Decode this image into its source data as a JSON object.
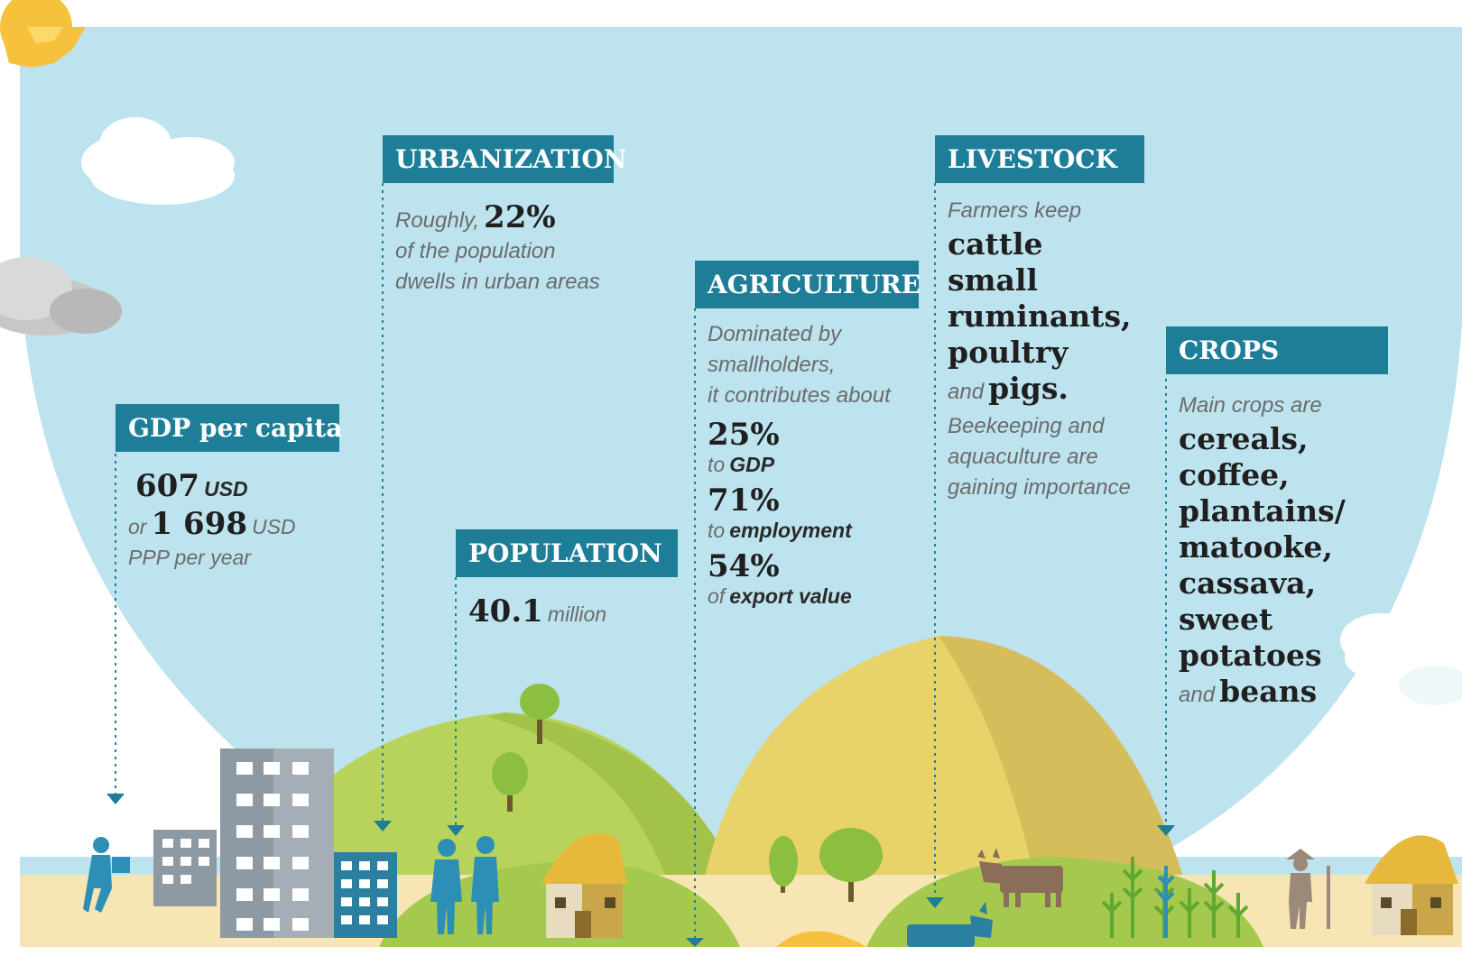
{
  "gdp": {
    "title": "GDP per capita",
    "value": "607",
    "unit": "USD",
    "connector": "or",
    "ppp_value": "1 698",
    "ppp_unit": "USD",
    "ppp_label": "PPP per year"
  },
  "urbanization": {
    "title": "URBANIZATION",
    "lead": "Roughly,",
    "value": "22%",
    "line2": "of the population",
    "line3": "dwells in urban areas"
  },
  "population": {
    "title": "POPULATION",
    "value": "40.1",
    "unit": "million"
  },
  "agriculture": {
    "title": "AGRICULTURE",
    "intro": [
      "Dominated by",
      "smallholders,",
      "it contributes about"
    ],
    "stats": [
      {
        "value": "25%",
        "prefix": "to",
        "label": "GDP"
      },
      {
        "value": "71%",
        "prefix": "to",
        "label": "employment"
      },
      {
        "value": "54%",
        "prefix": "of",
        "label": "export value"
      }
    ]
  },
  "livestock": {
    "title": "LIVESTOCK",
    "intro": "Farmers keep",
    "animals": [
      "cattle",
      "small",
      "ruminants,",
      "poultry"
    ],
    "and": "and",
    "last": "pigs.",
    "note": [
      "Beekeeping and",
      "aquaculture are",
      "gaining importance"
    ]
  },
  "crops": {
    "title": "CROPS",
    "intro": "Main crops are",
    "items": [
      "cereals,",
      "coffee,",
      "plantains/",
      "matooke,",
      "cassava,",
      "sweet",
      "potatoes"
    ],
    "and": "and",
    "last": "beans"
  },
  "colors": {
    "sky": "#bde3ee",
    "header": "#1e7e98",
    "green_hill": "#a5c94e",
    "yellow_hill": "#e8d36a",
    "ground": "#f7e6b4",
    "figure_blue": "#2d8fb5"
  }
}
